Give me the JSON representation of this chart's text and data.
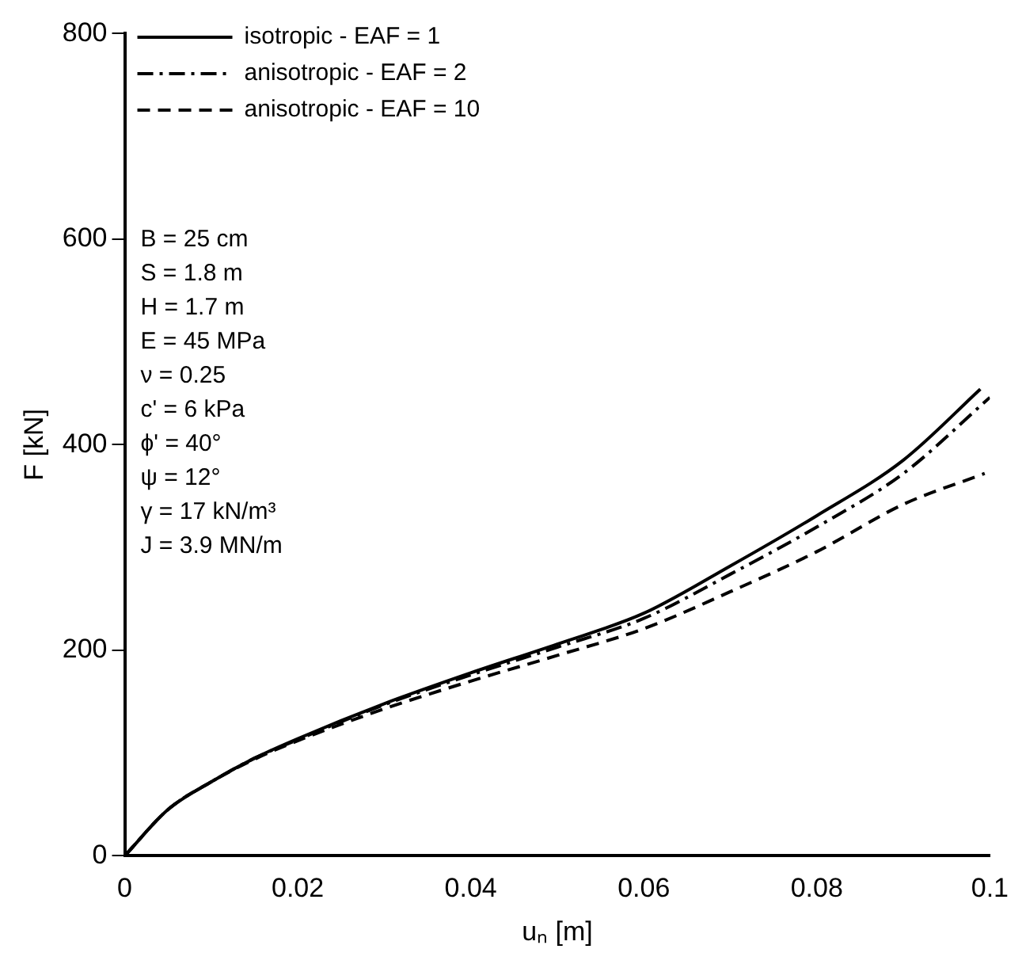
{
  "chart_data": {
    "type": "line",
    "xlabel": "uₙ [m]",
    "ylabel": "F [kN]",
    "xlim": [
      0,
      0.1
    ],
    "xticks": [
      0,
      0.02,
      0.04,
      0.06,
      0.08,
      {
        "value": 0.1,
        "label": "0.1"
      }
    ],
    "ylim": [
      0,
      800
    ],
    "yticks": [
      0,
      200,
      400,
      600,
      800
    ],
    "grid": false,
    "legend": "top left",
    "marker": "none",
    "annotations": [
      "B = 25 cm",
      "S = 1.8 m",
      "H = 1.7 m",
      "E = 45 MPa",
      "ν = 0.25",
      "c' = 6 kPa",
      "ϕ' = 40°",
      "ψ = 12°",
      "γ = 17 kN/m³",
      "J = 3.9 MN/m"
    ],
    "series": [
      {
        "name": "isotropic - EAF = 1",
        "color": "#000000",
        "line_style": "solid",
        "x": [
          0,
          0.005,
          0.01,
          0.015,
          0.02,
          0.03,
          0.04,
          0.05,
          0.06,
          0.07,
          0.08,
          0.09,
          0.0989
        ],
        "values": [
          0,
          45,
          72,
          95,
          114,
          148,
          178,
          206,
          236,
          282,
          331,
          385,
          454
        ]
      },
      {
        "name": "anisotropic - EAF = 2",
        "color": "#000000",
        "line_style": "dashdot",
        "x": [
          0,
          0.005,
          0.01,
          0.015,
          0.02,
          0.03,
          0.04,
          0.05,
          0.06,
          0.07,
          0.08,
          0.09,
          0.1
        ],
        "values": [
          0,
          45,
          72,
          95,
          113,
          147,
          176,
          203,
          231,
          274,
          320,
          372,
          446
        ]
      },
      {
        "name": "anisotropic - EAF = 10",
        "color": "#000000",
        "line_style": "dashed",
        "x": [
          0,
          0.005,
          0.01,
          0.015,
          0.02,
          0.03,
          0.04,
          0.05,
          0.06,
          0.07,
          0.08,
          0.09,
          0.0994
        ],
        "values": [
          0,
          45,
          72,
          94,
          112,
          143,
          170,
          195,
          221,
          257,
          296,
          342,
          372
        ]
      }
    ]
  }
}
